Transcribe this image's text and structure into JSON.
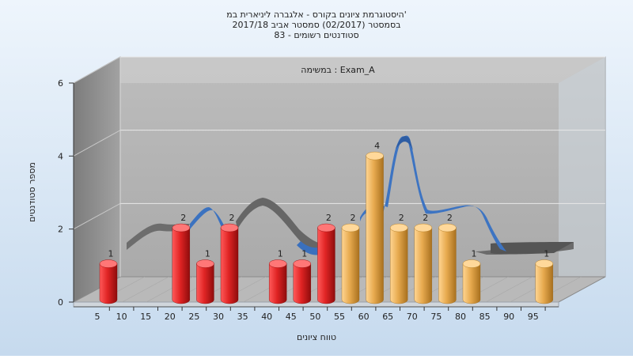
{
  "colors": {
    "background_top": "#e9f2fb",
    "background_bottom": "#c9dcef",
    "wall": "#b4b4b4",
    "wall_dark": "#8c8c8c",
    "floor": "#bdbdbd",
    "bar_red": "#d81f1f",
    "bar_orange": "#e3a64a",
    "ribbon_blue": "#3d74c2",
    "ribbon_gray": "#6e6e6e"
  },
  "chart_data": {
    "type": "bar",
    "title_lines": [
      "היסטוגרמת ציונים בקורס - אלגברה ליניארית במ'",
      "בסמסטר  (02/2017)  סמסטר אביב 2017/18",
      "סטודנטים רשומים - 83"
    ],
    "annotation": "במשימה : Exam_A",
    "xlabel": "טווח ציונים",
    "ylabel": "מספר סטודנטים",
    "categories": [
      "5",
      "10",
      "15",
      "20",
      "25",
      "30",
      "35",
      "40",
      "45",
      "50",
      "55",
      "60",
      "65",
      "70",
      "75",
      "80",
      "85",
      "90",
      "95"
    ],
    "values": [
      1,
      0,
      0,
      2,
      1,
      2,
      0,
      1,
      1,
      2,
      2,
      4,
      2,
      2,
      2,
      1,
      0,
      0,
      1
    ],
    "bar_colors": [
      "red",
      "red",
      "red",
      "red",
      "red",
      "red",
      "red",
      "red",
      "red",
      "red",
      "orange",
      "orange",
      "orange",
      "orange",
      "orange",
      "orange",
      "orange",
      "orange",
      "orange"
    ],
    "data_labels": [
      "1",
      "",
      "",
      "2",
      "1",
      "2",
      "",
      "1",
      "1",
      "2",
      "2",
      "4",
      "2",
      "2",
      "2",
      "1",
      "",
      "",
      "1"
    ],
    "yticks": [
      "0",
      "2",
      "4",
      "6"
    ],
    "ylim": [
      0,
      6
    ],
    "grid": true,
    "legend": "none"
  }
}
